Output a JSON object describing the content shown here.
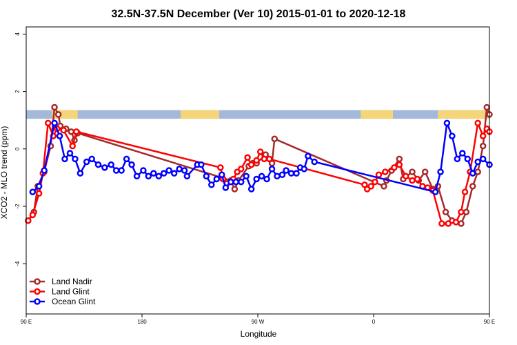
{
  "chart_data": {
    "type": "line",
    "title": "32.5N-37.5N December (Ver 10)   2015-01-01 to 2020-12-18",
    "xlabel": "Longitude",
    "ylabel": "XCO2 - MLO trend (ppm)",
    "xlim": [
      90,
      450
    ],
    "ylim": [
      -5.75,
      4.25
    ],
    "x_ticks": [
      {
        "value": 90,
        "label": "90 E"
      },
      {
        "value": 180,
        "label": "180"
      },
      {
        "value": 270,
        "label": "90 W"
      },
      {
        "value": 360,
        "label": "0"
      },
      {
        "value": 450,
        "label": "90 E"
      }
    ],
    "y_ticks": [
      {
        "value": 4,
        "label": "4"
      },
      {
        "value": 2,
        "label": "2"
      },
      {
        "value": 0,
        "label": "0"
      },
      {
        "value": -2,
        "label": "-2"
      },
      {
        "value": -4,
        "label": "-4"
      }
    ],
    "legend_position": "bottom-left",
    "land_band": {
      "y_range": [
        1.05,
        1.35
      ],
      "ocean_color": "#a4b9d9",
      "land_color": "#f5d57a",
      "land_segments": [
        [
          110,
          130
        ],
        [
          210,
          240
        ],
        [
          350,
          375
        ],
        [
          410,
          450
        ]
      ]
    },
    "series": [
      {
        "name": "Land Nadir",
        "color": "#a52a2a",
        "points": [
          [
            91.5,
            -2.5
          ],
          [
            96,
            -2.2
          ],
          [
            99,
            -1.3
          ],
          [
            104,
            -0.8
          ],
          [
            109,
            0.1
          ],
          [
            112,
            1.45
          ],
          [
            115,
            1.2
          ],
          [
            116.5,
            0.8
          ],
          [
            121,
            0.7
          ],
          [
            125,
            0.6
          ],
          [
            127.5,
            0.3
          ],
          [
            130,
            0.55
          ],
          [
            242,
            -1.0
          ],
          [
            249,
            -1.1
          ],
          [
            252,
            -1.4
          ],
          [
            255,
            -1.1
          ],
          [
            263,
            -0.6
          ],
          [
            266,
            -0.5
          ],
          [
            269,
            -0.5
          ],
          [
            276,
            -0.2
          ],
          [
            281,
            -0.5
          ],
          [
            283,
            0.35
          ],
          [
            368,
            -1.3
          ],
          [
            370,
            -1.1
          ],
          [
            374,
            -0.75
          ],
          [
            380,
            -0.35
          ],
          [
            383,
            -1.05
          ],
          [
            390,
            -0.8
          ],
          [
            395,
            -1.1
          ],
          [
            400,
            -0.8
          ],
          [
            406,
            -1.4
          ],
          [
            410,
            -1.3
          ],
          [
            416,
            -2.2
          ],
          [
            421,
            -2.5
          ],
          [
            428,
            -2.6
          ],
          [
            432,
            -2.2
          ],
          [
            437,
            -1.3
          ],
          [
            441,
            -0.8
          ],
          [
            445,
            0.1
          ],
          [
            448,
            1.45
          ],
          [
            450,
            1.2
          ]
        ]
      },
      {
        "name": "Land Glint",
        "color": "#ff0000",
        "points": [
          [
            91.5,
            -2.5
          ],
          [
            95,
            -2.3
          ],
          [
            100,
            -1.55
          ],
          [
            103,
            -0.85
          ],
          [
            107,
            0.9
          ],
          [
            111,
            0.45
          ],
          [
            114,
            0.7
          ],
          [
            119,
            0.65
          ],
          [
            126,
            0.1
          ],
          [
            129,
            0.6
          ],
          [
            241,
            -0.65
          ],
          [
            243,
            -1.05
          ],
          [
            246,
            -1.2
          ],
          [
            251,
            -1.05
          ],
          [
            254,
            -0.8
          ],
          [
            257,
            -0.7
          ],
          [
            262,
            -0.3
          ],
          [
            265,
            -0.55
          ],
          [
            269,
            -0.4
          ],
          [
            272,
            -0.1
          ],
          [
            275,
            -0.35
          ],
          [
            279,
            -0.35
          ],
          [
            353,
            -1.25
          ],
          [
            355,
            -1.4
          ],
          [
            358,
            -1.3
          ],
          [
            361,
            -1.15
          ],
          [
            364,
            -0.9
          ],
          [
            369,
            -0.8
          ],
          [
            376,
            -0.65
          ],
          [
            380,
            -0.55
          ],
          [
            385,
            -0.95
          ],
          [
            390,
            -1.1
          ],
          [
            394,
            -1.05
          ],
          [
            398,
            -1.3
          ],
          [
            402,
            -1.35
          ],
          [
            406,
            -1.45
          ],
          [
            413,
            -2.6
          ],
          [
            418,
            -2.6
          ],
          [
            424,
            -2.55
          ],
          [
            428,
            -2.2
          ],
          [
            431,
            -1.5
          ],
          [
            435,
            -0.8
          ],
          [
            441,
            0.9
          ],
          [
            445,
            0.45
          ],
          [
            448,
            0.7
          ],
          [
            450,
            0.6
          ]
        ]
      },
      {
        "name": "Ocean Glint",
        "color": "#0000ff",
        "points": [
          [
            95,
            -1.5
          ],
          [
            100,
            -1.3
          ],
          [
            104,
            -0.75
          ],
          [
            112,
            0.9
          ],
          [
            116,
            0.45
          ],
          [
            120,
            -0.35
          ],
          [
            124,
            -0.15
          ],
          [
            128,
            -0.35
          ],
          [
            132,
            -0.85
          ],
          [
            137,
            -0.45
          ],
          [
            141,
            -0.35
          ],
          [
            146,
            -0.55
          ],
          [
            151,
            -0.65
          ],
          [
            156,
            -0.55
          ],
          [
            160,
            -0.75
          ],
          [
            164,
            -0.75
          ],
          [
            168,
            -0.35
          ],
          [
            172,
            -0.55
          ],
          [
            176,
            -0.95
          ],
          [
            181,
            -0.75
          ],
          [
            185,
            -0.95
          ],
          [
            189,
            -0.85
          ],
          [
            193,
            -0.95
          ],
          [
            197,
            -0.85
          ],
          [
            201,
            -0.75
          ],
          [
            205,
            -0.85
          ],
          [
            209,
            -0.7
          ],
          [
            213,
            -0.75
          ],
          [
            215,
            -0.95
          ],
          [
            223,
            -0.55
          ],
          [
            226,
            -0.55
          ],
          [
            230,
            -0.95
          ],
          [
            234,
            -1.25
          ],
          [
            238,
            -1.05
          ],
          [
            242,
            -0.9
          ],
          [
            245,
            -1.35
          ],
          [
            249,
            -1.15
          ],
          [
            253,
            -1.15
          ],
          [
            257,
            -1.15
          ],
          [
            261,
            -0.95
          ],
          [
            265,
            -1.4
          ],
          [
            269,
            -1.05
          ],
          [
            273,
            -0.95
          ],
          [
            277,
            -1.05
          ],
          [
            281,
            -0.7
          ],
          [
            285,
            -0.95
          ],
          [
            289,
            -0.9
          ],
          [
            292,
            -0.75
          ],
          [
            296,
            -0.85
          ],
          [
            300,
            -0.85
          ],
          [
            303,
            -0.65
          ],
          [
            306,
            -0.7
          ],
          [
            309,
            -0.25
          ],
          [
            314,
            -0.45
          ],
          [
            408,
            -1.5
          ],
          [
            412,
            -0.8
          ],
          [
            417,
            0.9
          ],
          [
            421,
            0.45
          ],
          [
            425,
            -0.35
          ],
          [
            429,
            -0.15
          ],
          [
            433,
            -0.35
          ],
          [
            437,
            -0.85
          ],
          [
            441,
            -0.45
          ],
          [
            445,
            -0.35
          ],
          [
            450,
            -0.55
          ]
        ]
      }
    ]
  }
}
